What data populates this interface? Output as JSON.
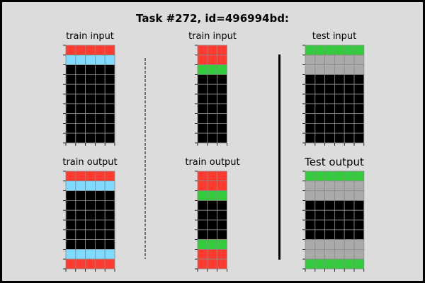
{
  "title": "Task #272, id=496994bd:",
  "colors": {
    "0": "#000000",
    "1": "#ff3b30",
    "2": "#32cc3c",
    "3": "#7fdbff",
    "4": "#aaaaaa",
    "gridline": "#8a8a8a",
    "background": "#dcdcdc"
  },
  "panels": [
    {
      "key": "train_input_1",
      "label": "train input",
      "grid": [
        [
          1,
          1,
          1,
          1,
          1
        ],
        [
          3,
          3,
          3,
          3,
          3
        ],
        [
          0,
          0,
          0,
          0,
          0
        ],
        [
          0,
          0,
          0,
          0,
          0
        ],
        [
          0,
          0,
          0,
          0,
          0
        ],
        [
          0,
          0,
          0,
          0,
          0
        ],
        [
          0,
          0,
          0,
          0,
          0
        ],
        [
          0,
          0,
          0,
          0,
          0
        ],
        [
          0,
          0,
          0,
          0,
          0
        ],
        [
          0,
          0,
          0,
          0,
          0
        ]
      ]
    },
    {
      "key": "train_input_2",
      "label": "train input",
      "grid": [
        [
          1,
          1,
          1
        ],
        [
          1,
          1,
          1
        ],
        [
          2,
          2,
          2
        ],
        [
          0,
          0,
          0
        ],
        [
          0,
          0,
          0
        ],
        [
          0,
          0,
          0
        ],
        [
          0,
          0,
          0
        ],
        [
          0,
          0,
          0
        ],
        [
          0,
          0,
          0
        ],
        [
          0,
          0,
          0
        ]
      ]
    },
    {
      "key": "test_input",
      "label": "test input",
      "grid": [
        [
          2,
          2,
          2,
          2,
          2,
          2
        ],
        [
          4,
          4,
          4,
          4,
          4,
          4
        ],
        [
          4,
          4,
          4,
          4,
          4,
          4
        ],
        [
          0,
          0,
          0,
          0,
          0,
          0
        ],
        [
          0,
          0,
          0,
          0,
          0,
          0
        ],
        [
          0,
          0,
          0,
          0,
          0,
          0
        ],
        [
          0,
          0,
          0,
          0,
          0,
          0
        ],
        [
          0,
          0,
          0,
          0,
          0,
          0
        ],
        [
          0,
          0,
          0,
          0,
          0,
          0
        ],
        [
          0,
          0,
          0,
          0,
          0,
          0
        ]
      ]
    },
    {
      "key": "train_output_1",
      "label": "train output",
      "grid": [
        [
          1,
          1,
          1,
          1,
          1
        ],
        [
          3,
          3,
          3,
          3,
          3
        ],
        [
          0,
          0,
          0,
          0,
          0
        ],
        [
          0,
          0,
          0,
          0,
          0
        ],
        [
          0,
          0,
          0,
          0,
          0
        ],
        [
          0,
          0,
          0,
          0,
          0
        ],
        [
          0,
          0,
          0,
          0,
          0
        ],
        [
          0,
          0,
          0,
          0,
          0
        ],
        [
          3,
          3,
          3,
          3,
          3
        ],
        [
          1,
          1,
          1,
          1,
          1
        ]
      ]
    },
    {
      "key": "train_output_2",
      "label": "train output",
      "grid": [
        [
          1,
          1,
          1
        ],
        [
          1,
          1,
          1
        ],
        [
          2,
          2,
          2
        ],
        [
          0,
          0,
          0
        ],
        [
          0,
          0,
          0
        ],
        [
          0,
          0,
          0
        ],
        [
          0,
          0,
          0
        ],
        [
          2,
          2,
          2
        ],
        [
          1,
          1,
          1
        ],
        [
          1,
          1,
          1
        ]
      ]
    },
    {
      "key": "test_output",
      "label": "Test output",
      "grid": [
        [
          2,
          2,
          2,
          2,
          2,
          2
        ],
        [
          4,
          4,
          4,
          4,
          4,
          4
        ],
        [
          4,
          4,
          4,
          4,
          4,
          4
        ],
        [
          0,
          0,
          0,
          0,
          0,
          0
        ],
        [
          0,
          0,
          0,
          0,
          0,
          0
        ],
        [
          0,
          0,
          0,
          0,
          0,
          0
        ],
        [
          0,
          0,
          0,
          0,
          0,
          0
        ],
        [
          4,
          4,
          4,
          4,
          4,
          4
        ],
        [
          4,
          4,
          4,
          4,
          4,
          4
        ],
        [
          2,
          2,
          2,
          2,
          2,
          2
        ]
      ]
    }
  ]
}
